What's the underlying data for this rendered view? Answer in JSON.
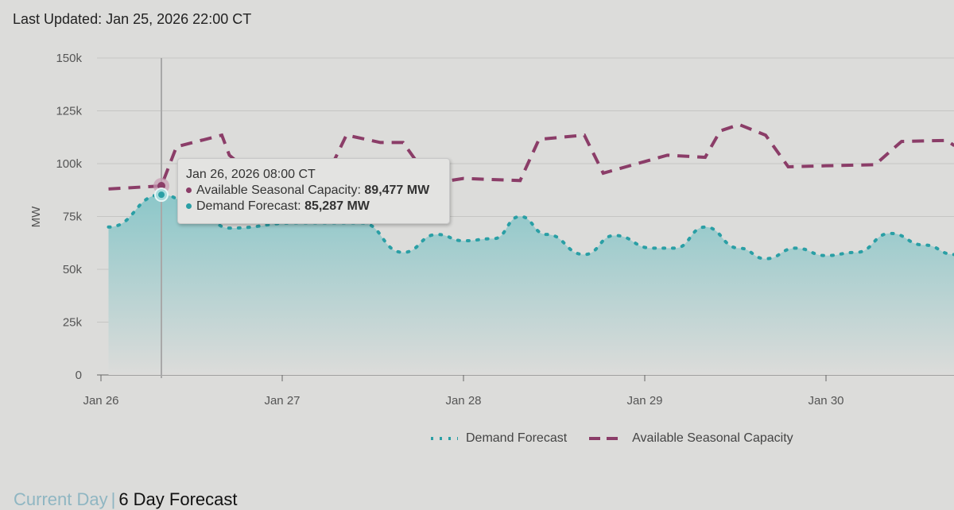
{
  "header": {
    "last_updated": "Last Updated: Jan 25, 2026 22:00 CT"
  },
  "tabs": {
    "current_day": "Current Day",
    "separator": "|",
    "six_day": "6 Day Forecast"
  },
  "tooltip": {
    "title": "Jan 26, 2026 08:00 CT",
    "rows": [
      {
        "label": "Available Seasonal Capacity: ",
        "value": "89,477 MW"
      },
      {
        "label": "Demand Forecast: ",
        "value": "85,287 MW"
      }
    ]
  },
  "colors": {
    "demand": "#2a9fa5",
    "capacity": "#8b3d68",
    "area_top": "#8cc7c9",
    "area_bottom": "#dcdcda"
  },
  "chart_data": {
    "type": "area",
    "ylabel": "MW",
    "ylim": [
      0,
      150000
    ],
    "yticks": [
      0,
      25000,
      50000,
      75000,
      100000,
      125000,
      150000
    ],
    "ytick_labels": [
      "0",
      "25k",
      "50k",
      "75k",
      "100k",
      "125k",
      "150k"
    ],
    "xlim": [
      "2026-01-26T00:00",
      "2026-01-30T17:00"
    ],
    "xticks": [
      "2026-01-26T00:00",
      "2026-01-27T00:00",
      "2026-01-28T00:00",
      "2026-01-29T00:00",
      "2026-01-30T00:00"
    ],
    "xtick_labels": [
      "Jan 26",
      "Jan 27",
      "Jan 28",
      "Jan 29",
      "Jan 30"
    ],
    "grid": true,
    "legend": "bottom",
    "crosshair_x": "2026-01-26T08:00",
    "series": [
      {
        "name": "Demand Forecast",
        "style": "dotted-area",
        "x": [
          "2026-01-26T01:00",
          "2026-01-26T08:00",
          "2026-01-26T12:00",
          "2026-01-26T17:00",
          "2026-01-27T02:00",
          "2026-01-27T10:30",
          "2026-01-27T16:00",
          "2026-01-27T20:30",
          "2026-01-28T00:00",
          "2026-01-28T04:00",
          "2026-01-28T07:30",
          "2026-01-28T11:00",
          "2026-01-28T16:00",
          "2026-01-28T20:00",
          "2026-01-29T01:00",
          "2026-01-29T04:00",
          "2026-01-29T08:00",
          "2026-01-29T12:30",
          "2026-01-29T16:00",
          "2026-01-29T20:00",
          "2026-01-30T00:00",
          "2026-01-30T04:00",
          "2026-01-30T08:30",
          "2026-01-30T13:00",
          "2026-01-30T17:00"
        ],
        "values": [
          70000,
          85287,
          81500,
          69500,
          72000,
          72000,
          58000,
          66500,
          63500,
          64500,
          75000,
          66500,
          57000,
          66000,
          60000,
          60000,
          70000,
          60000,
          55000,
          60000,
          56500,
          58000,
          67000,
          61500,
          57000
        ]
      },
      {
        "name": "Available Seasonal Capacity",
        "style": "dashed",
        "x": [
          "2026-01-26T01:00",
          "2026-01-26T08:00",
          "2026-01-26T10:00",
          "2026-01-26T16:00",
          "2026-01-26T17:00",
          "2026-01-26T20:00",
          "2026-01-27T06:00",
          "2026-01-27T08:30",
          "2026-01-27T13:00",
          "2026-01-27T16:00",
          "2026-01-27T18:00",
          "2026-01-27T20:30",
          "2026-01-28T00:00",
          "2026-01-28T07:30",
          "2026-01-28T10:00",
          "2026-01-28T16:00",
          "2026-01-28T18:30",
          "2026-01-29T03:00",
          "2026-01-29T08:00",
          "2026-01-29T10:00",
          "2026-01-29T12:30",
          "2026-01-29T16:00",
          "2026-01-29T19:00",
          "2026-01-30T00:00",
          "2026-01-30T06:30",
          "2026-01-30T10:00",
          "2026-01-30T16:00",
          "2026-01-30T17:00"
        ],
        "values": [
          88000,
          89477,
          108000,
          113500,
          104000,
          95000,
          95000,
          113500,
          110000,
          110000,
          100000,
          91000,
          93000,
          92000,
          111500,
          113500,
          95500,
          104000,
          103000,
          115500,
          118500,
          113500,
          98500,
          99000,
          99500,
          110500,
          111000,
          108500
        ]
      }
    ]
  }
}
